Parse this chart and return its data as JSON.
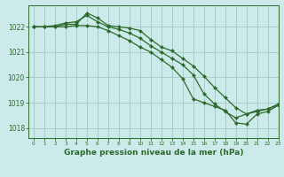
{
  "title": "Graphe pression niveau de la mer (hPa)",
  "bg_color": "#cceaea",
  "grid_color": "#aacccc",
  "line_color": "#2d6b2d",
  "xlim": [
    -0.5,
    23
  ],
  "ylim": [
    1017.6,
    1022.85
  ],
  "yticks": [
    1018,
    1019,
    1020,
    1021,
    1022
  ],
  "xticks": [
    0,
    1,
    2,
    3,
    4,
    5,
    6,
    7,
    8,
    9,
    10,
    11,
    12,
    13,
    14,
    15,
    16,
    17,
    18,
    19,
    20,
    21,
    22,
    23
  ],
  "line1_x": [
    0,
    1,
    2,
    3,
    4,
    5,
    6,
    7,
    8,
    9,
    10,
    11,
    12,
    13,
    14,
    15,
    16,
    17,
    18,
    19,
    20,
    21,
    22,
    23
  ],
  "line1_y": [
    1022.0,
    1022.0,
    1022.0,
    1022.1,
    1022.1,
    1022.55,
    1022.35,
    1022.05,
    1022.0,
    1021.95,
    1021.85,
    1021.5,
    1021.2,
    1021.05,
    1020.75,
    1020.45,
    1020.05,
    1019.6,
    1019.2,
    1018.8,
    1018.55,
    1018.65,
    1018.75,
    1018.9
  ],
  "line2_x": [
    0,
    1,
    2,
    3,
    4,
    5,
    6,
    7,
    8,
    9,
    10,
    11,
    12,
    13,
    14,
    15,
    16,
    17,
    18,
    19,
    20,
    21,
    22,
    23
  ],
  "line2_y": [
    1022.0,
    1022.0,
    1022.05,
    1022.15,
    1022.2,
    1022.45,
    1022.2,
    1022.0,
    1021.9,
    1021.75,
    1021.55,
    1021.25,
    1021.0,
    1020.75,
    1020.5,
    1020.1,
    1019.35,
    1018.95,
    1018.65,
    1018.4,
    1018.55,
    1018.7,
    1018.75,
    1018.95
  ],
  "line3_x": [
    0,
    1,
    2,
    3,
    4,
    5,
    6,
    7,
    8,
    9,
    10,
    11,
    12,
    13,
    14,
    15,
    16,
    17,
    18,
    19,
    20,
    21,
    22,
    23
  ],
  "line3_y": [
    1022.0,
    1022.0,
    1022.0,
    1022.0,
    1022.05,
    1022.05,
    1022.0,
    1021.85,
    1021.65,
    1021.45,
    1021.2,
    1021.0,
    1020.7,
    1020.4,
    1019.95,
    1019.15,
    1019.0,
    1018.85,
    1018.7,
    1018.2,
    1018.15,
    1018.55,
    1018.65,
    1018.9
  ],
  "marker": "D",
  "markersize": 2.0,
  "linewidth": 0.9,
  "xlabel_fontsize": 6.5,
  "ytick_fontsize": 5.5,
  "xtick_fontsize": 4.2
}
